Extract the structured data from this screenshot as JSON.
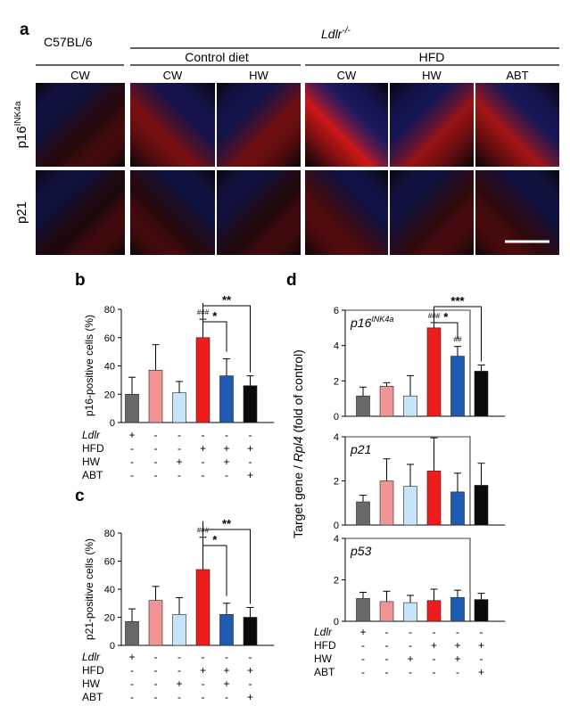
{
  "panel_a": {
    "letter": "a",
    "strain": "C57BL/6",
    "ldlr_label": "Ldlr",
    "ldlr_sup": "-/-",
    "control_label": "Control diet",
    "hfd_label": "HFD",
    "columns": [
      "CW",
      "CW",
      "HW",
      "CW",
      "HW",
      "ABT"
    ],
    "rows": [
      {
        "name": "p16",
        "sup": "INK4a",
        "intensity": [
          0.15,
          0.55,
          0.5,
          0.95,
          0.7,
          0.75
        ]
      },
      {
        "name": "p21",
        "sup": "",
        "intensity": [
          0.1,
          0.15,
          0.12,
          0.3,
          0.2,
          0.2
        ]
      }
    ],
    "colors": {
      "tissue_red": "#d81818",
      "tissue_blue": "#2828a8",
      "background": "#050508"
    }
  },
  "colors": {
    "bars": [
      "#686868",
      "#f09595",
      "#c6e5f8",
      "#ee1c1c",
      "#1f5bb2",
      "#0a0a0a"
    ]
  },
  "groups": {
    "row_labels": [
      "Ldlr",
      "HFD",
      "HW",
      "ABT"
    ],
    "signs": [
      [
        "+",
        "-",
        "-",
        "-",
        "-",
        "-"
      ],
      [
        "-",
        "-",
        "-",
        "+",
        "+",
        "+"
      ],
      [
        "-",
        "-",
        "+",
        "-",
        "+",
        "-"
      ],
      [
        "-",
        "-",
        "-",
        "-",
        "-",
        "+"
      ]
    ]
  },
  "chart_data": [
    {
      "panel": "b",
      "type": "bar",
      "ylabel": "p16-positive cells (%)",
      "ylim": [
        0,
        80
      ],
      "yticks": [
        "0",
        "20",
        "40",
        "60",
        "80"
      ],
      "values": [
        20,
        37,
        21,
        60,
        33,
        26
      ],
      "errors": [
        12,
        18,
        8,
        13,
        12,
        7
      ],
      "marks": [
        "",
        "",
        "",
        "###",
        "",
        ""
      ],
      "brackets": [
        {
          "from": 3,
          "to": 4,
          "label": "*"
        },
        {
          "from": 3,
          "to": 5,
          "label": "**"
        }
      ]
    },
    {
      "panel": "c",
      "type": "bar",
      "ylabel": "p21-positive cells (%)",
      "ylim": [
        0,
        80
      ],
      "yticks": [
        "0",
        "20",
        "40",
        "60",
        "80"
      ],
      "values": [
        17,
        32,
        22,
        54,
        22,
        20
      ],
      "errors": [
        9,
        10,
        12,
        23,
        8,
        7
      ],
      "marks": [
        "",
        "",
        "",
        "###",
        "",
        ""
      ],
      "brackets": [
        {
          "from": 3,
          "to": 4,
          "label": "*"
        },
        {
          "from": 3,
          "to": 5,
          "label": "**"
        }
      ]
    },
    {
      "panel": "d",
      "type": "bar",
      "ylabel": "Target gene / Rpl4 (fold of control)",
      "subplots": [
        {
          "gene": "p16",
          "gene_sup": "INK4a",
          "ylim": [
            0,
            6
          ],
          "yticks": [
            "0",
            "2",
            "4",
            "6"
          ],
          "values": [
            1.15,
            1.7,
            1.15,
            5.0,
            3.4,
            2.55
          ],
          "errors": [
            0.5,
            0.2,
            1.15,
            0.3,
            0.55,
            0.35
          ],
          "marks": [
            "",
            "",
            "",
            "###",
            "##",
            ""
          ],
          "brackets": [
            {
              "from": 3,
              "to": 4,
              "label": "*"
            },
            {
              "from": 3,
              "to": 5,
              "label": "***"
            }
          ]
        },
        {
          "gene": "p21",
          "gene_sup": "",
          "ylim": [
            0,
            4
          ],
          "yticks": [
            "0",
            "2",
            "4"
          ],
          "values": [
            1.05,
            2.0,
            1.75,
            2.45,
            1.5,
            1.8
          ],
          "errors": [
            0.3,
            1.0,
            1.0,
            1.5,
            0.85,
            1.0
          ],
          "marks": [
            "",
            "",
            "",
            "",
            "",
            ""
          ],
          "brackets": []
        },
        {
          "gene": "p53",
          "gene_sup": "",
          "ylim": [
            0,
            4
          ],
          "yticks": [
            "0",
            "2",
            "4"
          ],
          "values": [
            1.1,
            0.95,
            0.9,
            1.0,
            1.15,
            1.05
          ],
          "errors": [
            0.3,
            0.5,
            0.35,
            0.55,
            0.35,
            0.3
          ],
          "marks": [
            "",
            "",
            "",
            "",
            "",
            ""
          ],
          "brackets": []
        }
      ]
    }
  ]
}
